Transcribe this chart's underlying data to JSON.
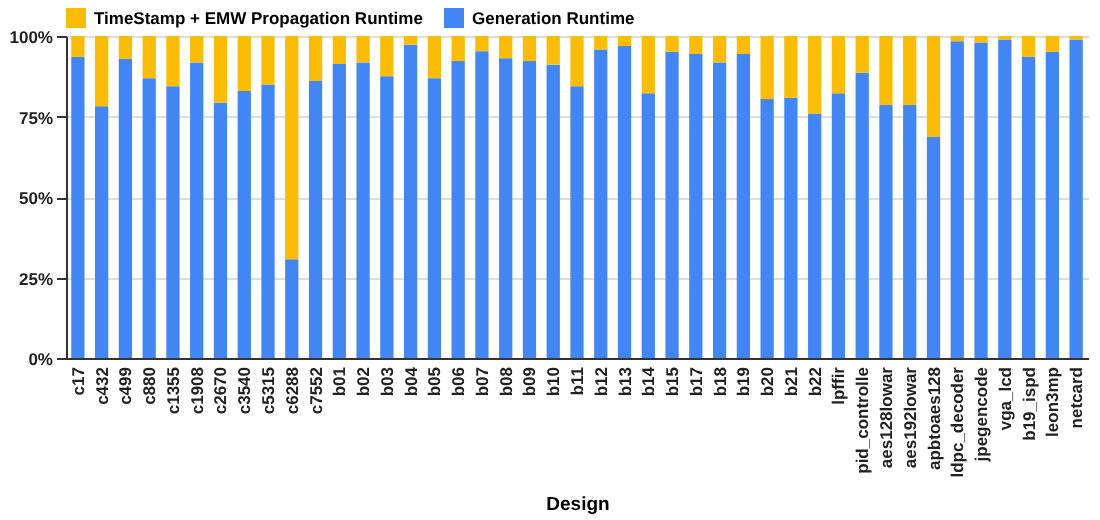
{
  "chart_data": {
    "type": "bar",
    "stacked": true,
    "xlabel": "Design",
    "legend": "top",
    "grid": "y",
    "categories": [
      "c17",
      "c432",
      "c499",
      "c880",
      "c1355",
      "c1908",
      "c2670",
      "c3540",
      "c5315",
      "c6288",
      "c7552",
      "b01",
      "b02",
      "b03",
      "b04",
      "b05",
      "b06",
      "b07",
      "b08",
      "b09",
      "b10",
      "b11",
      "b12",
      "b13",
      "b14",
      "b15",
      "b17",
      "b18",
      "b19",
      "b20",
      "b21",
      "b22",
      "lpffir",
      "pid_controlle",
      "aes128lowar",
      "aes192lowar",
      "apbtoaes128",
      "ldpc_decoder",
      "jpegencode",
      "vga_lcd",
      "b19_ispd",
      "leon3mp",
      "netcard"
    ],
    "ylim": [
      0,
      100
    ],
    "yticks": [
      {
        "value": 0,
        "label": "0%"
      },
      {
        "value": 25,
        "label": "25%"
      },
      {
        "value": 50,
        "label": "50%"
      },
      {
        "value": 75,
        "label": "75%"
      },
      {
        "value": 100,
        "label": "100%"
      }
    ],
    "series": [
      {
        "name": "Generation Runtime",
        "color": "#4285f4",
        "values": [
          93.5,
          78.2,
          92.9,
          86.9,
          84.4,
          91.8,
          79.3,
          82.9,
          84.9,
          30.7,
          86,
          91.3,
          91.8,
          87.5,
          97.3,
          86.9,
          92.2,
          95.3,
          93.1,
          92.2,
          91.1,
          84.4,
          95.8,
          96.9,
          82.2,
          95.1,
          94.4,
          91.8,
          94.4,
          80.4,
          80.8,
          75.9,
          82.2,
          88.6,
          78.6,
          78.6,
          68.6,
          98.4,
          98,
          98.9,
          93.5,
          95.1,
          98.9
        ]
      },
      {
        "name": "TimeStamp + EMW Propagation Runtime",
        "color": "#fbbc04",
        "values": [
          6.5,
          21.8,
          7.1,
          13.1,
          15.6,
          8.2,
          20.7,
          17.1,
          15.1,
          69.3,
          14,
          8.7,
          8.2,
          12.5,
          2.7,
          13.1,
          7.8,
          4.7,
          6.9,
          7.8,
          8.9,
          15.6,
          4.2,
          3.1,
          17.8,
          4.9,
          5.6,
          8.2,
          5.6,
          19.6,
          19.2,
          24.1,
          17.8,
          11.4,
          21.4,
          21.4,
          31.4,
          1.6,
          2,
          1.1,
          6.5,
          4.9,
          1.1
        ]
      }
    ]
  }
}
